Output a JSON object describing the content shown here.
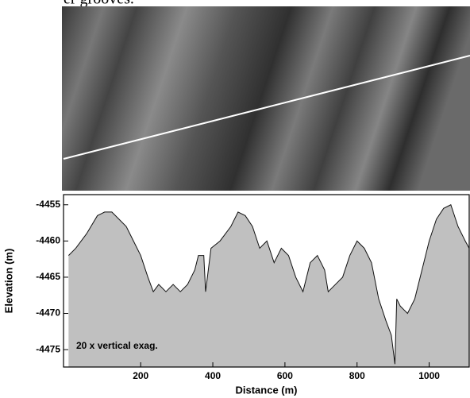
{
  "caption_fragment": "er grooves.",
  "chart_data": {
    "type": "area",
    "annotation": "20 x vertical exag.",
    "x_label": "Distance (m)",
    "y_label": "Elevation (m)",
    "color": "#c0c0c0",
    "x": [
      0,
      20,
      50,
      80,
      100,
      120,
      140,
      160,
      180,
      200,
      220,
      235,
      250,
      270,
      290,
      310,
      330,
      350,
      360,
      375,
      380,
      395,
      420,
      450,
      470,
      490,
      510,
      530,
      550,
      570,
      590,
      610,
      630,
      650,
      670,
      690,
      710,
      720,
      740,
      760,
      780,
      800,
      820,
      840,
      860,
      880,
      895,
      905,
      910,
      920,
      940,
      960,
      980,
      1000,
      1020,
      1040,
      1060,
      1080,
      1100,
      1111
    ],
    "values": [
      -4462,
      -4461,
      -4459,
      -4456.5,
      -4456,
      -4456,
      -4457,
      -4458,
      -4460,
      -4462,
      -4465,
      -4467,
      -4466,
      -4467,
      -4466,
      -4467,
      -4466,
      -4464,
      -4462,
      -4462,
      -4467,
      -4461,
      -4460,
      -4458,
      -4456,
      -4456.5,
      -4458,
      -4461,
      -4460,
      -4463,
      -4461,
      -4462,
      -4465,
      -4467,
      -4463,
      -4462,
      -4464,
      -4467,
      -4466,
      -4465,
      -4462,
      -4460,
      -4461,
      -4463,
      -4468,
      -4471,
      -4473,
      -4477,
      -4468,
      -4469,
      -4470,
      -4468,
      -4464,
      -4460,
      -4457,
      -4455.5,
      -4455,
      -4458,
      -4460,
      -4461
    ],
    "xlim": [
      -14,
      1111
    ],
    "ylim": [
      -4477.4,
      -4453.6
    ],
    "xticks": [
      200,
      400,
      600,
      800,
      1000
    ],
    "yticks": [
      -4455,
      -4460,
      -4465,
      -4470,
      -4475
    ]
  }
}
